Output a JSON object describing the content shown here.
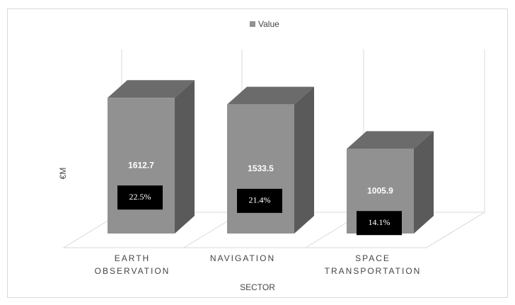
{
  "chart_data": {
    "type": "bar3d",
    "legend": "Value",
    "x_label": "SECTOR",
    "y_label": "€M",
    "categories": [
      "EARTH OBSERVATION",
      "NAVIGATION",
      "SPACE TRANSPORTATION"
    ],
    "values": [
      1612.7,
      1533.5,
      1005.9
    ],
    "annotations": [
      "22.5%",
      "21.4%",
      "14.1%"
    ],
    "color": "#919191",
    "ylim": [
      0,
      1800
    ]
  }
}
